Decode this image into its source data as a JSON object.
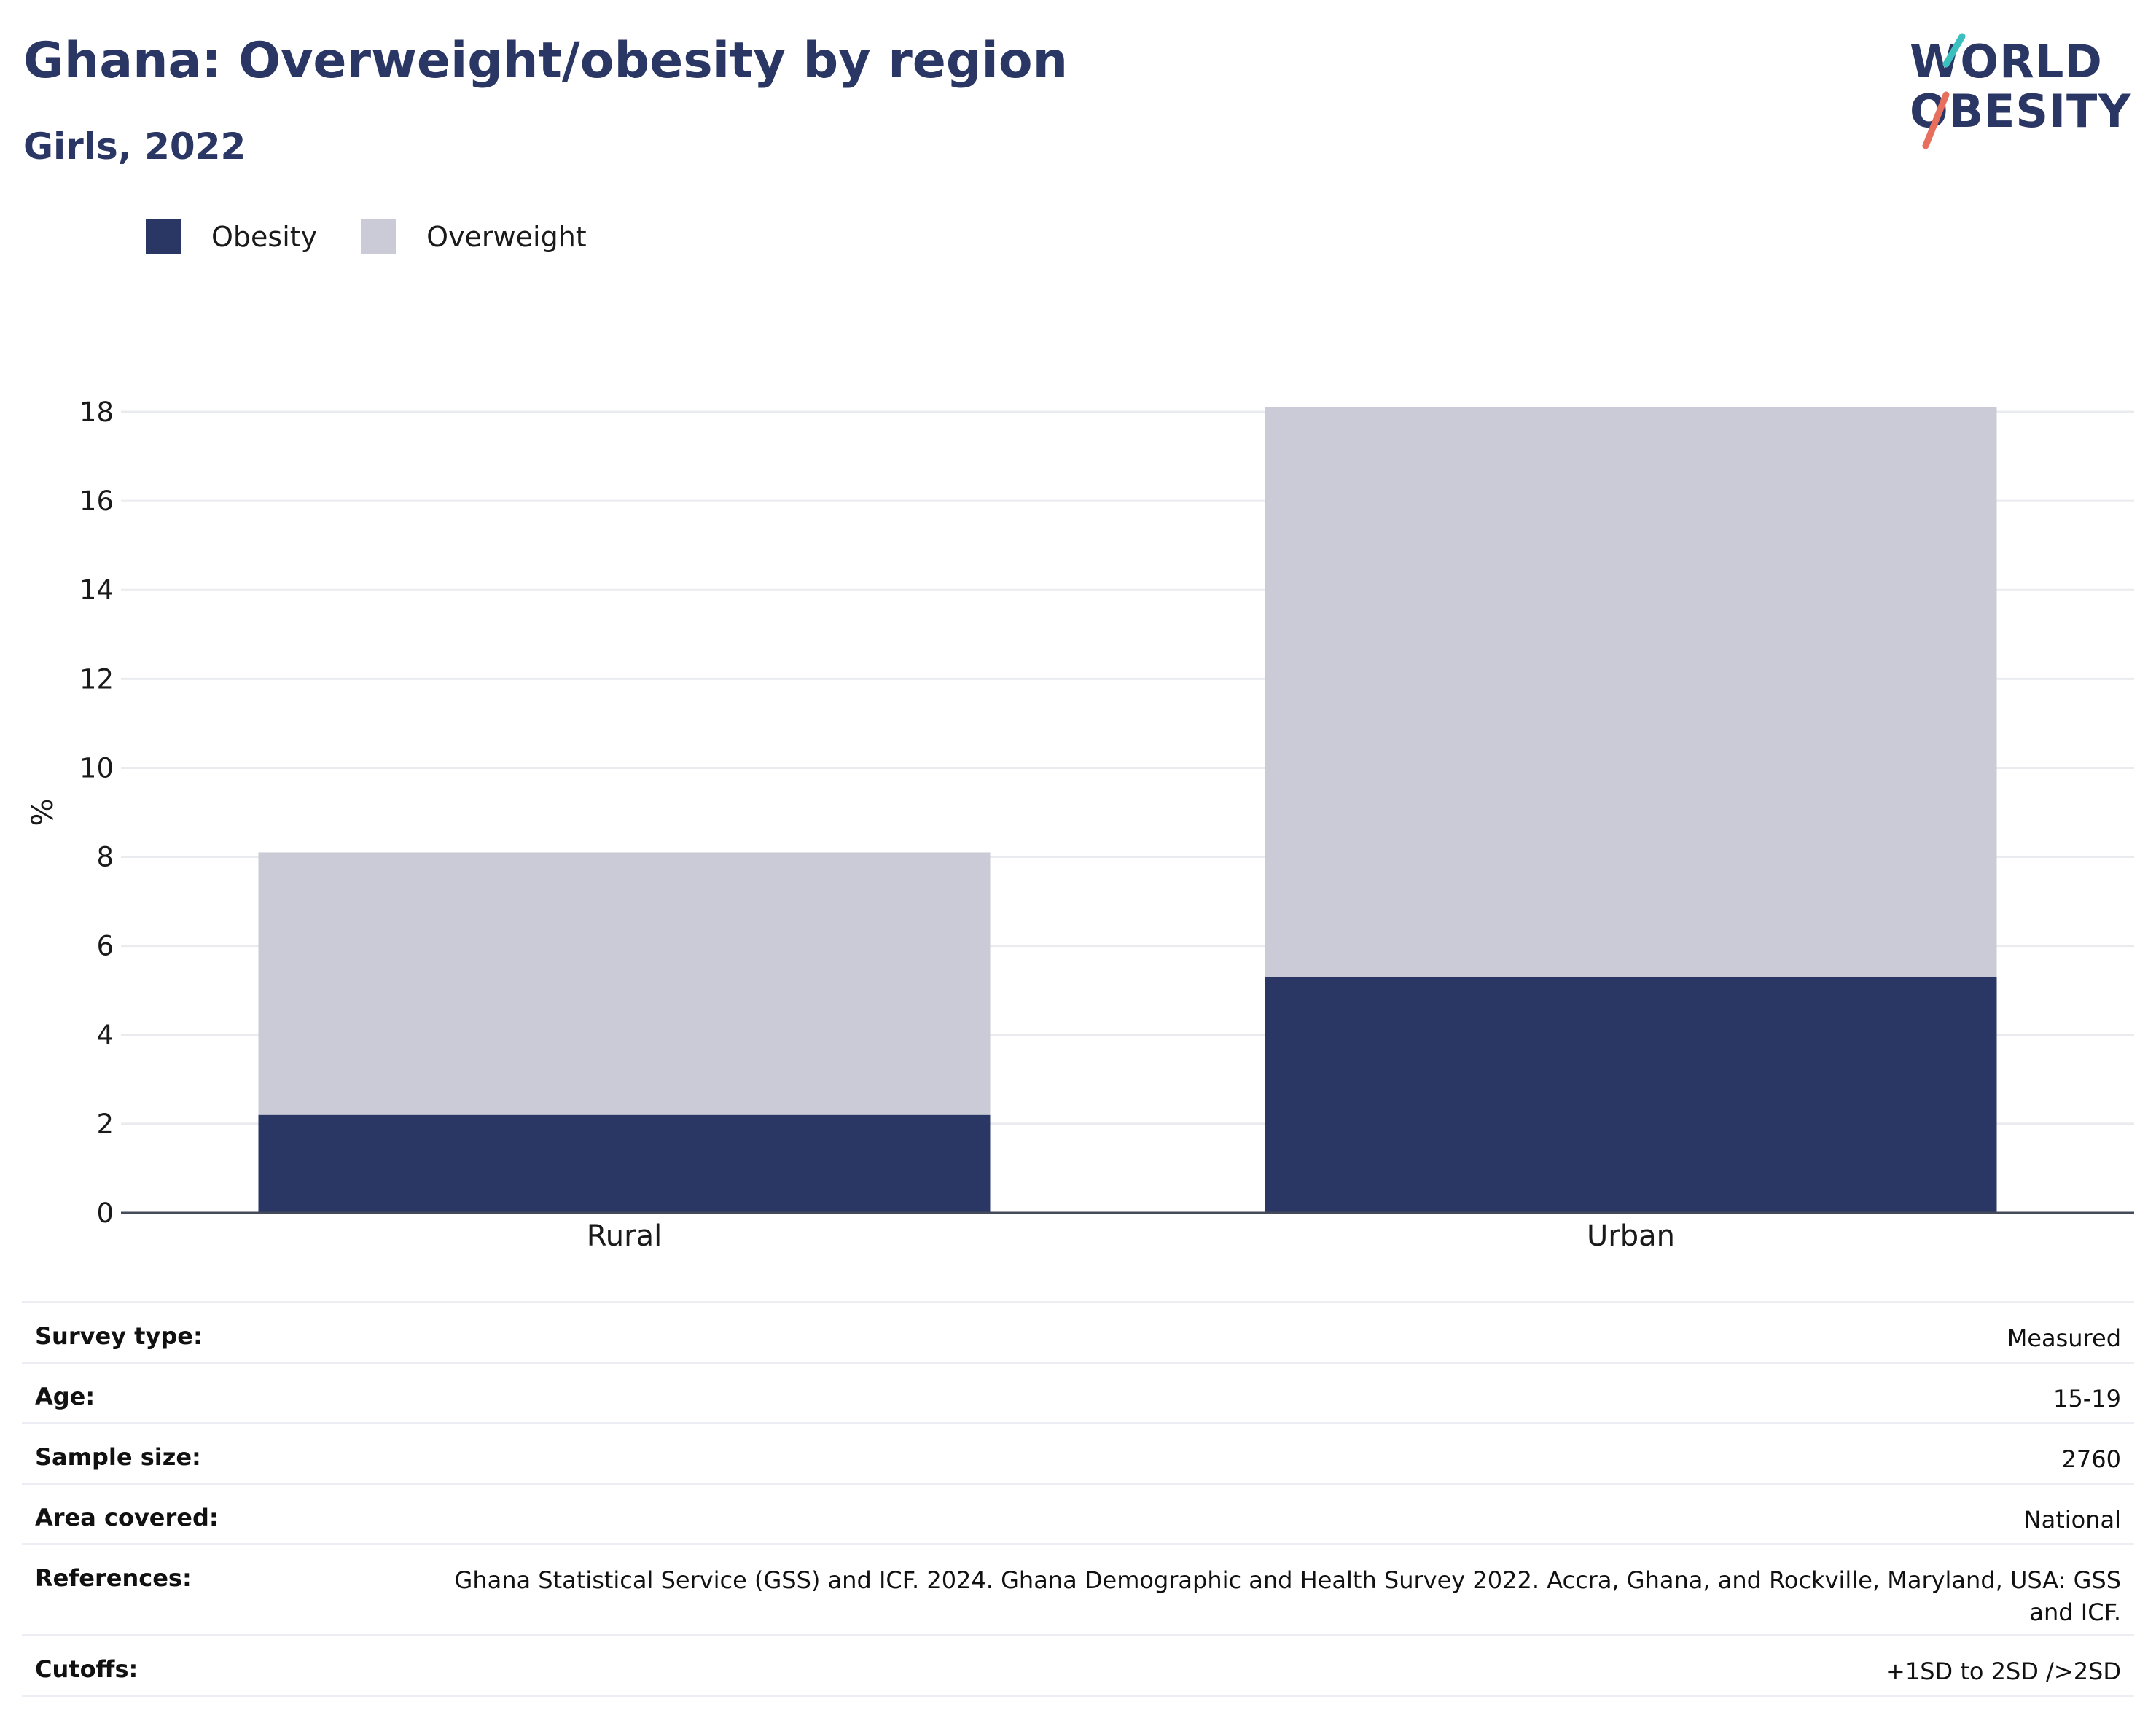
{
  "header": {
    "title": "Ghana: Overweight/obesity by region",
    "subtitle": "Girls, 2022"
  },
  "logo": {
    "line1": "WORLD",
    "line2": "OBESITY",
    "slash_colors": [
      "#3cbfbf",
      "#e76f5e"
    ]
  },
  "legend": [
    {
      "label": "Obesity",
      "color": "#2a3663"
    },
    {
      "label": "Overweight",
      "color": "#cacbd6"
    }
  ],
  "chart_data": {
    "type": "bar",
    "stacked": true,
    "categories": [
      "Rural",
      "Urban"
    ],
    "series": [
      {
        "name": "Obesity",
        "values": [
          2.2,
          5.3
        ],
        "color": "#2a3663"
      },
      {
        "name": "Overweight",
        "values": [
          5.9,
          12.8
        ],
        "color": "#cacbd6"
      }
    ],
    "ylabel": "%",
    "ylim": [
      0,
      18
    ],
    "yticks": [
      0,
      2,
      4,
      6,
      8,
      10,
      12,
      14,
      16,
      18
    ],
    "grid": true,
    "legend_position": "top-left"
  },
  "info": [
    {
      "label": "Survey type:",
      "value": "Measured"
    },
    {
      "label": "Age:",
      "value": "15-19"
    },
    {
      "label": "Sample size:",
      "value": "2760"
    },
    {
      "label": "Area covered:",
      "value": "National"
    },
    {
      "label": "References:",
      "value": "Ghana Statistical Service (GSS) and ICF. 2024. Ghana Demographic and Health Survey 2022. Accra, Ghana, and Rockville, Maryland, USA: GSS and ICF."
    },
    {
      "label": "Cutoffs:",
      "value": "+1SD to 2SD />2SD"
    }
  ]
}
